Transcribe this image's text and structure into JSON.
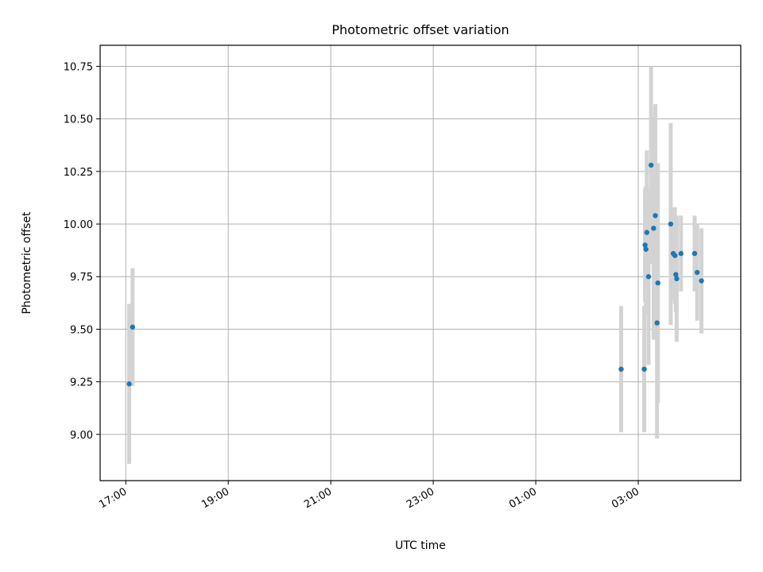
{
  "chart_data": {
    "type": "scatter",
    "title": "Photometric offset variation",
    "xlabel": "UTC time",
    "ylabel": "Photometric offset",
    "x_ticks": [
      "17:00",
      "19:00",
      "21:00",
      "23:00",
      "01:00",
      "03:00"
    ],
    "y_ticks": [
      "9.00",
      "9.25",
      "9.50",
      "9.75",
      "10.00",
      "10.25",
      "10.50",
      "10.75"
    ],
    "xlim": [
      "16:30",
      "05:00"
    ],
    "ylim": [
      8.78,
      10.85
    ],
    "grid": true,
    "legend": "none",
    "colors": {
      "point": "#1f77b4",
      "errorbar": "#d3d3d3",
      "grid": "#b0b0b0"
    },
    "points": [
      {
        "x": "17:04",
        "y": 9.24,
        "yerr": 0.38
      },
      {
        "x": "17:08",
        "y": 9.51,
        "yerr": 0.28
      },
      {
        "x": "02:40",
        "y": 9.31,
        "yerr": 0.3
      },
      {
        "x": "03:07",
        "y": 9.31,
        "yerr": 0.3
      },
      {
        "x": "03:08",
        "y": 9.9,
        "yerr": 0.27
      },
      {
        "x": "03:09",
        "y": 9.88,
        "yerr": 0.3
      },
      {
        "x": "03:10",
        "y": 9.96,
        "yerr": 0.39
      },
      {
        "x": "03:12",
        "y": 9.75,
        "yerr": 0.42
      },
      {
        "x": "03:15",
        "y": 10.28,
        "yerr": 0.47
      },
      {
        "x": "03:18",
        "y": 9.98,
        "yerr": 0.53
      },
      {
        "x": "03:20",
        "y": 10.04,
        "yerr": 0.53
      },
      {
        "x": "03:22",
        "y": 9.53,
        "yerr": 0.55
      },
      {
        "x": "03:23",
        "y": 9.72,
        "yerr": 0.57
      },
      {
        "x": "03:38",
        "y": 10.0,
        "yerr": 0.48
      },
      {
        "x": "03:41",
        "y": 9.86,
        "yerr": 0.22
      },
      {
        "x": "03:43",
        "y": 9.85,
        "yerr": 0.23
      },
      {
        "x": "03:44",
        "y": 9.76,
        "yerr": 0.18
      },
      {
        "x": "03:45",
        "y": 9.74,
        "yerr": 0.3
      },
      {
        "x": "03:50",
        "y": 9.86,
        "yerr": 0.18
      },
      {
        "x": "04:06",
        "y": 9.86,
        "yerr": 0.18
      },
      {
        "x": "04:09",
        "y": 9.77,
        "yerr": 0.23
      },
      {
        "x": "04:14",
        "y": 9.73,
        "yerr": 0.25
      }
    ]
  }
}
